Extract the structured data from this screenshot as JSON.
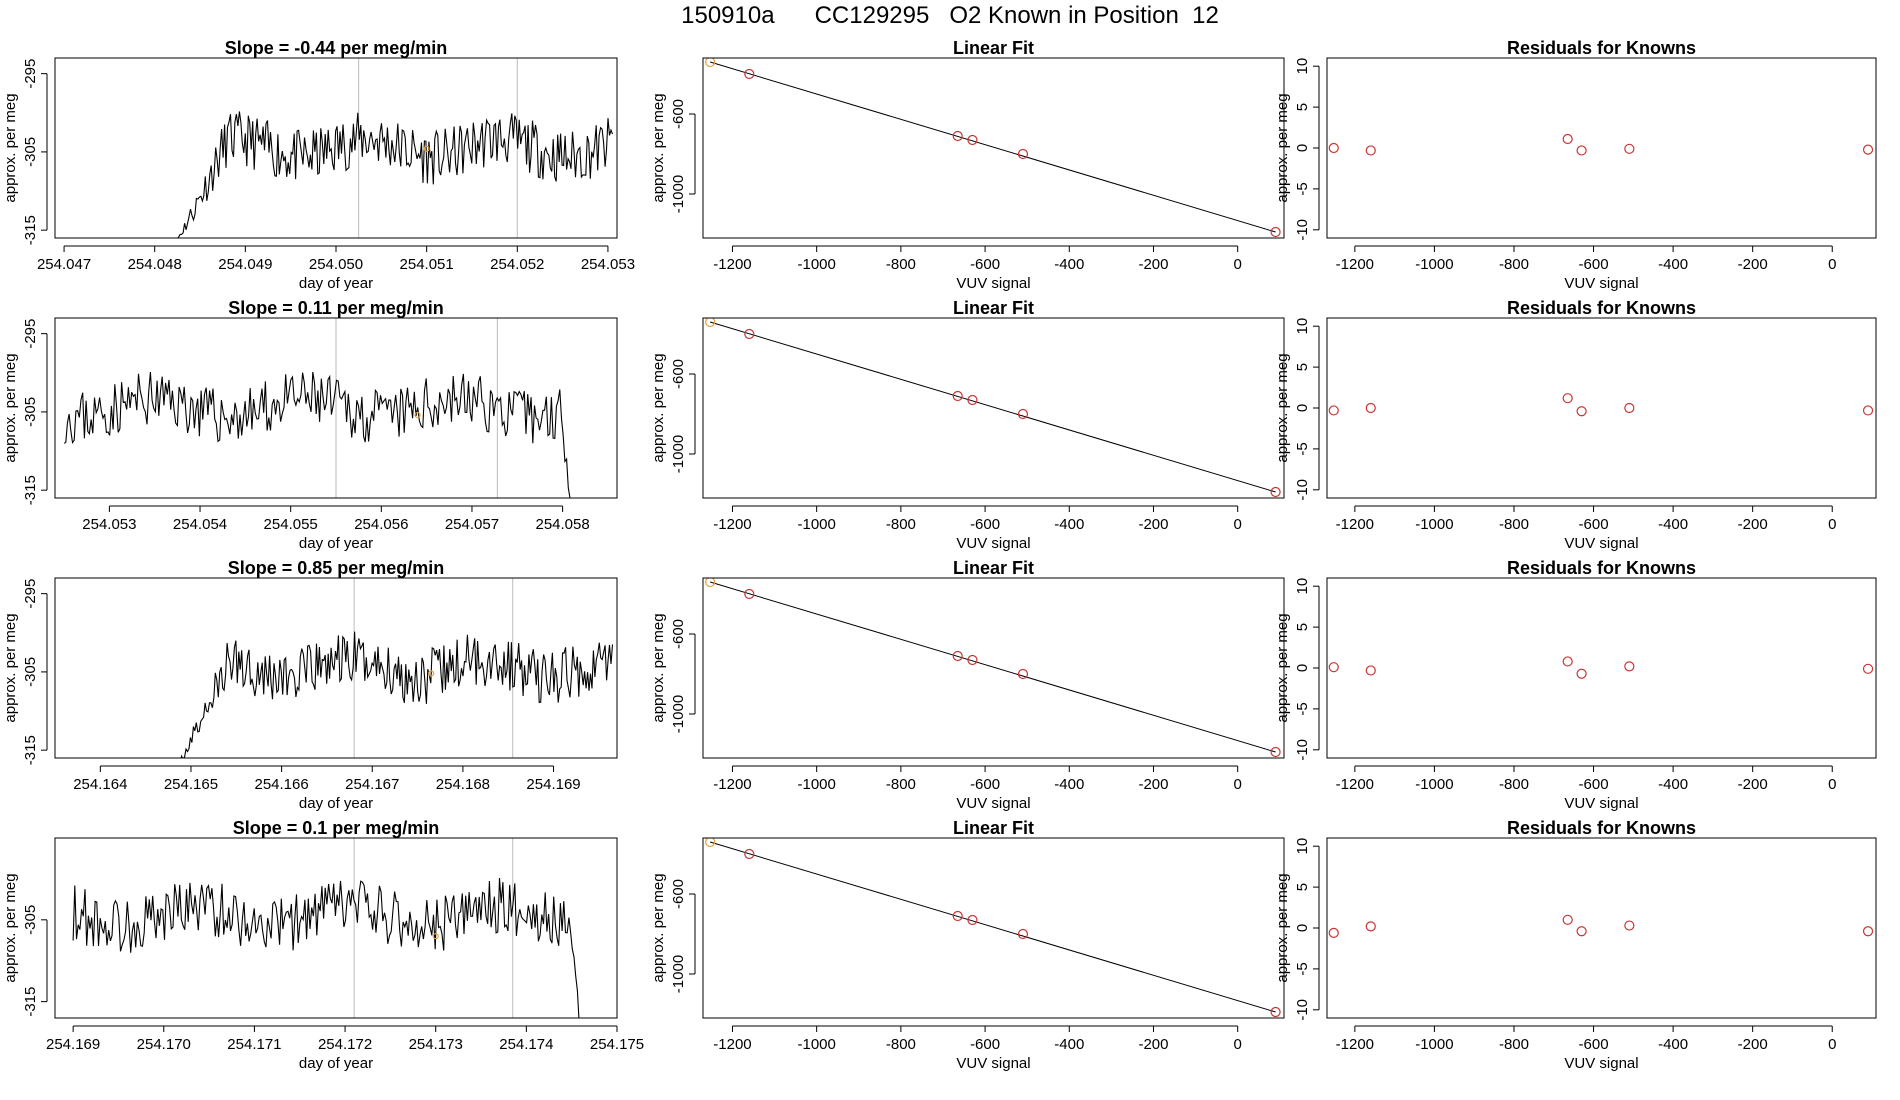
{
  "suptitle": "150910a      CC129295   O2 Known in Position  12",
  "colors": {
    "line": "#000000",
    "known": "#cc3333",
    "sample": "#e6a23c",
    "vline": "#bbbbbb",
    "axis": "#000000"
  },
  "chart_data": [
    {
      "type": "line",
      "row": 0,
      "title": "Slope =  -0.44  per meg/min",
      "xlabel": "day of year",
      "ylabel": "approx. per meg",
      "xlim": [
        254.0469,
        254.0531
      ],
      "ylim": [
        -316,
        -293
      ],
      "xticks": [
        "254.047",
        "254.048",
        "254.049",
        "254.050",
        "254.051",
        "254.052",
        "254.053"
      ],
      "xtick_values": [
        254.047,
        254.048,
        254.049,
        254.05,
        254.051,
        254.052,
        254.053
      ],
      "yticks": [
        "-295",
        "-305",
        "-315"
      ],
      "ytick_values": [
        -295,
        -305,
        -315
      ],
      "vlines": [
        254.05025,
        254.052
      ],
      "start": 254.04815,
      "end": 254.05305,
      "rise_from": -318,
      "seed": 11,
      "sample_point": [
        254.051,
        -304.6
      ]
    },
    {
      "type": "scatter",
      "row": 0,
      "title": "Linear Fit",
      "xlabel": "VUV signal",
      "ylabel": "approx. per meg",
      "xlim": [
        -1270,
        110
      ],
      "ylim": [
        -1220,
        -320
      ],
      "xticks": [
        "-1200",
        "-1000",
        "-800",
        "-600",
        "-400",
        "-200",
        "0"
      ],
      "xtick_values": [
        -1200,
        -1000,
        -800,
        -600,
        -400,
        -200,
        0
      ],
      "yticks": [
        "-600",
        "-1000"
      ],
      "ytick_values": [
        -600,
        -1000
      ],
      "points": [
        [
          -1253,
          -340
        ],
        [
          -1160,
          -400
        ],
        [
          -665,
          -710
        ],
        [
          -630,
          -730
        ],
        [
          -510,
          -800
        ],
        [
          90,
          -1190
        ]
      ],
      "fit_line": [
        [
          -1253,
          -340
        ],
        [
          90,
          -1190
        ]
      ],
      "first_point_color": "sample"
    },
    {
      "type": "scatter",
      "row": 0,
      "title": "Residuals for Knowns",
      "xlabel": "VUV signal",
      "ylabel": "approx. per meg",
      "xlim": [
        -1270,
        110
      ],
      "ylim": [
        -11,
        11
      ],
      "xticks": [
        "-1200",
        "-1000",
        "-800",
        "-600",
        "-400",
        "-200",
        "0"
      ],
      "xtick_values": [
        -1200,
        -1000,
        -800,
        -600,
        -400,
        -200,
        0
      ],
      "yticks": [
        "10",
        "5",
        "0",
        "-5",
        "-10"
      ],
      "ytick_values": [
        10,
        5,
        0,
        -5,
        -10
      ],
      "points": [
        [
          -1253,
          0
        ],
        [
          -1160,
          -0.3
        ],
        [
          -665,
          1.1
        ],
        [
          -630,
          -0.3
        ],
        [
          -510,
          -0.1
        ],
        [
          90,
          -0.2
        ]
      ]
    },
    {
      "type": "line",
      "row": 1,
      "title": "Slope =  0.11  per meg/min",
      "xlabel": "day of year",
      "ylabel": "approx. per meg",
      "xlim": [
        254.0524,
        254.0586
      ],
      "ylim": [
        -316,
        -293
      ],
      "xticks": [
        "254.053",
        "254.054",
        "254.055",
        "254.056",
        "254.057",
        "254.058"
      ],
      "xtick_values": [
        254.053,
        254.054,
        254.055,
        254.056,
        254.057,
        254.058
      ],
      "yticks": [
        "-295",
        "-305",
        "-315"
      ],
      "ytick_values": [
        -295,
        -305,
        -315
      ],
      "vlines": [
        254.0555,
        254.05728
      ],
      "start": 254.0525,
      "end": 254.0581,
      "fall_to": -318,
      "seed": 23,
      "sample_point": [
        254.0564,
        -305.4
      ]
    },
    {
      "type": "scatter",
      "row": 1,
      "title": "Linear Fit",
      "xlabel": "VUV signal",
      "ylabel": "approx. per meg",
      "xlim": [
        -1270,
        110
      ],
      "ylim": [
        -1220,
        -320
      ],
      "xticks": [
        "-1200",
        "-1000",
        "-800",
        "-600",
        "-400",
        "-200",
        "0"
      ],
      "xtick_values": [
        -1200,
        -1000,
        -800,
        -600,
        -400,
        -200,
        0
      ],
      "yticks": [
        "-600",
        "-1000"
      ],
      "ytick_values": [
        -600,
        -1000
      ],
      "points": [
        [
          -1253,
          -340
        ],
        [
          -1160,
          -400
        ],
        [
          -665,
          -710
        ],
        [
          -630,
          -730
        ],
        [
          -510,
          -800
        ],
        [
          90,
          -1190
        ]
      ],
      "fit_line": [
        [
          -1253,
          -340
        ],
        [
          90,
          -1190
        ]
      ],
      "first_point_color": "sample"
    },
    {
      "type": "scatter",
      "row": 1,
      "title": "Residuals for Knowns",
      "xlabel": "VUV signal",
      "ylabel": "approx. per meg",
      "xlim": [
        -1270,
        110
      ],
      "ylim": [
        -11,
        11
      ],
      "xticks": [
        "-1200",
        "-1000",
        "-800",
        "-600",
        "-400",
        "-200",
        "0"
      ],
      "xtick_values": [
        -1200,
        -1000,
        -800,
        -600,
        -400,
        -200,
        0
      ],
      "yticks": [
        "10",
        "5",
        "0",
        "-5",
        "-10"
      ],
      "ytick_values": [
        10,
        5,
        0,
        -5,
        -10
      ],
      "points": [
        [
          -1253,
          -0.3
        ],
        [
          -1160,
          0
        ],
        [
          -665,
          1.2
        ],
        [
          -630,
          -0.4
        ],
        [
          -510,
          0
        ],
        [
          90,
          -0.3
        ]
      ]
    },
    {
      "type": "line",
      "row": 2,
      "title": "Slope =  0.85  per meg/min",
      "xlabel": "day of year",
      "ylabel": "approx. per meg",
      "xlim": [
        254.1635,
        254.1697
      ],
      "ylim": [
        -316,
        -293
      ],
      "xticks": [
        "254.164",
        "254.165",
        "254.166",
        "254.167",
        "254.168",
        "254.169"
      ],
      "xtick_values": [
        254.164,
        254.165,
        254.166,
        254.167,
        254.168,
        254.169
      ],
      "yticks": [
        "-295",
        "-305",
        "-315"
      ],
      "ytick_values": [
        -295,
        -305,
        -315
      ],
      "vlines": [
        254.1668,
        254.16855
      ],
      "start": 254.1648,
      "end": 254.16965,
      "rise_from": -318,
      "seed": 37,
      "sample_point": [
        254.16765,
        -305.2
      ]
    },
    {
      "type": "scatter",
      "row": 2,
      "title": "Linear Fit",
      "xlabel": "VUV signal",
      "ylabel": "approx. per meg",
      "xlim": [
        -1270,
        110
      ],
      "ylim": [
        -1220,
        -320
      ],
      "xticks": [
        "-1200",
        "-1000",
        "-800",
        "-600",
        "-400",
        "-200",
        "0"
      ],
      "xtick_values": [
        -1200,
        -1000,
        -800,
        -600,
        -400,
        -200,
        0
      ],
      "yticks": [
        "-600",
        "-1000"
      ],
      "ytick_values": [
        -600,
        -1000
      ],
      "points": [
        [
          -1253,
          -340
        ],
        [
          -1160,
          -400
        ],
        [
          -665,
          -710
        ],
        [
          -630,
          -730
        ],
        [
          -510,
          -800
        ],
        [
          90,
          -1190
        ]
      ],
      "fit_line": [
        [
          -1253,
          -340
        ],
        [
          90,
          -1190
        ]
      ],
      "first_point_color": "sample"
    },
    {
      "type": "scatter",
      "row": 2,
      "title": "Residuals for Knowns",
      "xlabel": "VUV signal",
      "ylabel": "approx. per meg",
      "xlim": [
        -1270,
        110
      ],
      "ylim": [
        -11,
        11
      ],
      "xticks": [
        "-1200",
        "-1000",
        "-800",
        "-600",
        "-400",
        "-200",
        "0"
      ],
      "xtick_values": [
        -1200,
        -1000,
        -800,
        -600,
        -400,
        -200,
        0
      ],
      "yticks": [
        "10",
        "5",
        "0",
        "-5",
        "-10"
      ],
      "ytick_values": [
        10,
        5,
        0,
        -5,
        -10
      ],
      "points": [
        [
          -1253,
          0.1
        ],
        [
          -1160,
          -0.3
        ],
        [
          -665,
          0.8
        ],
        [
          -630,
          -0.7
        ],
        [
          -510,
          0.2
        ],
        [
          90,
          -0.1
        ]
      ]
    },
    {
      "type": "line",
      "row": 3,
      "title": "Slope =  0.1  per meg/min",
      "xlabel": "day of year",
      "ylabel": "approx. per meg",
      "xlim": [
        254.1688,
        254.175
      ],
      "ylim": [
        -317,
        -295
      ],
      "xticks": [
        "254.169",
        "254.170",
        "254.171",
        "254.172",
        "254.173",
        "254.174",
        "254.175"
      ],
      "xtick_values": [
        254.169,
        254.17,
        254.171,
        254.172,
        254.173,
        254.174,
        254.175
      ],
      "yticks": [
        "-305",
        "-315"
      ],
      "ytick_values": [
        -305,
        -315
      ],
      "vlines": [
        254.1721,
        254.17385
      ],
      "start": 254.169,
      "end": 254.1746,
      "fall_to": -319,
      "seed": 53,
      "sample_point": [
        254.173,
        -307.0
      ]
    },
    {
      "type": "scatter",
      "row": 3,
      "title": "Linear Fit",
      "xlabel": "VUV signal",
      "ylabel": "approx. per meg",
      "xlim": [
        -1270,
        110
      ],
      "ylim": [
        -1220,
        -320
      ],
      "xticks": [
        "-1200",
        "-1000",
        "-800",
        "-600",
        "-400",
        "-200",
        "0"
      ],
      "xtick_values": [
        -1200,
        -1000,
        -800,
        -600,
        -400,
        -200,
        0
      ],
      "yticks": [
        "-600",
        "-1000"
      ],
      "ytick_values": [
        -600,
        -1000
      ],
      "points": [
        [
          -1253,
          -340
        ],
        [
          -1160,
          -400
        ],
        [
          -665,
          -710
        ],
        [
          -630,
          -730
        ],
        [
          -510,
          -800
        ],
        [
          90,
          -1190
        ]
      ],
      "fit_line": [
        [
          -1253,
          -340
        ],
        [
          90,
          -1190
        ]
      ],
      "first_point_color": "sample"
    },
    {
      "type": "scatter",
      "row": 3,
      "title": "Residuals for Knowns",
      "xlabel": "VUV signal",
      "ylabel": "approx. per meg",
      "xlim": [
        -1270,
        110
      ],
      "ylim": [
        -11,
        11
      ],
      "xticks": [
        "-1200",
        "-1000",
        "-800",
        "-600",
        "-400",
        "-200",
        "0"
      ],
      "xtick_values": [
        -1200,
        -1000,
        -800,
        -600,
        -400,
        -200,
        0
      ],
      "yticks": [
        "10",
        "5",
        "0",
        "-5",
        "-10"
      ],
      "ytick_values": [
        10,
        5,
        0,
        -5,
        -10
      ],
      "points": [
        [
          -1253,
          -0.6
        ],
        [
          -1160,
          0.2
        ],
        [
          -665,
          1.0
        ],
        [
          -630,
          -0.4
        ],
        [
          -510,
          0.3
        ],
        [
          90,
          -0.4
        ]
      ]
    }
  ]
}
